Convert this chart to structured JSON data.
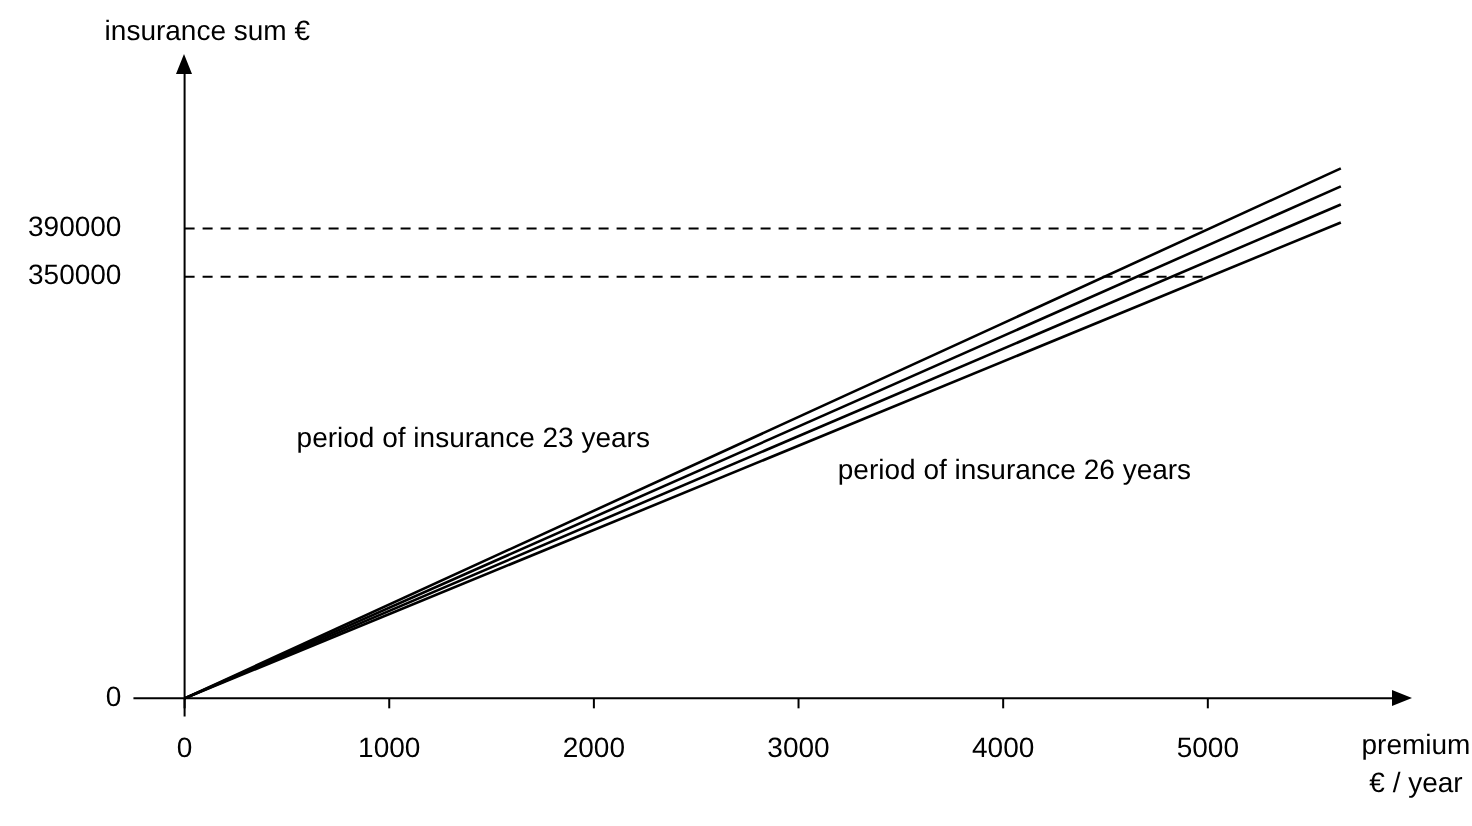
{
  "chart_data": {
    "type": "line",
    "xlabel": "premium € / year",
    "ylabel": "insurance sum €",
    "xlim": [
      -250,
      5900
    ],
    "ylim": [
      -15000,
      520000
    ],
    "xticks": [
      0,
      1000,
      2000,
      3000,
      4000,
      5000
    ],
    "yticks": [
      0,
      350000,
      390000
    ],
    "x": [
      0,
      5650
    ],
    "series": [
      {
        "values": [
          0,
          440000
        ],
        "color": "#000000"
      },
      {
        "values": [
          0,
          425000
        ],
        "color": "#000000"
      },
      {
        "values": [
          0,
          410000
        ],
        "color": "#000000"
      },
      {
        "values": [
          0,
          395000
        ],
        "color": "#000000"
      }
    ],
    "ref_lines": [
      {
        "axis": "y",
        "value": 390000,
        "label": null,
        "line_style": "dashed",
        "color": "#000000"
      },
      {
        "axis": "y",
        "value": 350000,
        "label": null,
        "line_style": "dashed",
        "color": "#000000"
      }
    ],
    "annotations": [
      "period of insurance 23 years",
      "period of insurance 26 years"
    ],
    "grid": false,
    "legend": false,
    "marker": "none",
    "line_style": "solid"
  }
}
